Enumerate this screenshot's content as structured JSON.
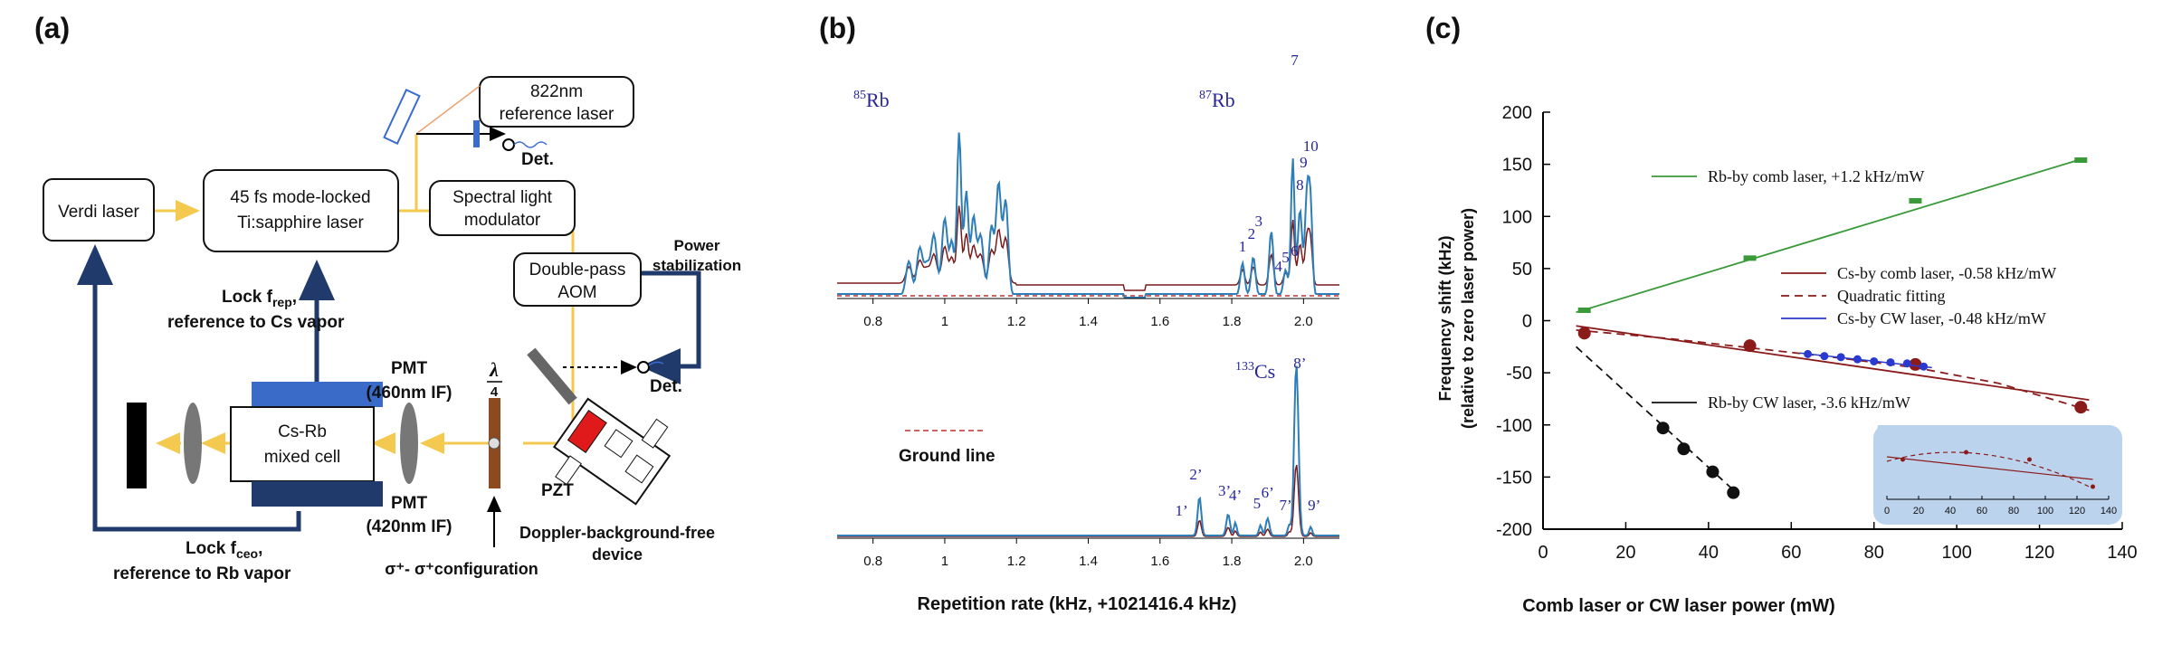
{
  "panel_a": {
    "label": "(a)",
    "verdi": "Verdi laser",
    "ti_line1": "45 fs mode-locked",
    "ti_line2": "Ti:sapphire laser",
    "ref_line1": "822nm",
    "ref_line2": "reference laser",
    "det_top": "Det.",
    "slm_line1": "Spectral light",
    "slm_line2": "modulator",
    "aom_line1": "Double-pass",
    "aom_line2": "AOM",
    "power_line1": "Power",
    "power_line2": "stabilization",
    "det_mid": "Det.",
    "lock_rep_line1": "Lock f",
    "lock_rep_sub": "rep",
    "lock_rep_line2": "reference to Cs vapor",
    "pmt460_line1": "PMT",
    "pmt460_line2": "(460nm IF)",
    "cell_line1": "Cs-Rb",
    "cell_line2": "mixed cell",
    "pmt420_line1": "PMT",
    "pmt420_line2": "(420nm IF)",
    "lambda_num": "λ",
    "lambda_den": "4",
    "pzt": "PZT",
    "doppler_line1": "Doppler-background-free",
    "doppler_line2": "device",
    "lock_ceo_line1": "Lock f",
    "lock_ceo_sub": "ceo",
    "lock_ceo_line2": "reference to Rb vapor",
    "sigma_text": "σ⁺- σ⁺configuration"
  },
  "panel_b": {
    "label": "(b)",
    "rb85_sup": "85",
    "rb85_el": "Rb",
    "rb87_sup": "87",
    "rb87_el": "Rb",
    "cs_sup": "133",
    "cs_el": "Cs",
    "ground_line": "Ground line",
    "xlabel": "Repetition rate (kHz, +1021416.4 kHz)",
    "x_ticks": [
      "0.8",
      "1",
      "1.2",
      "1.4",
      "1.6",
      "1.8",
      "2.0"
    ],
    "top_peak_labels": [
      "1",
      "2",
      "3",
      "4",
      "5",
      "6",
      "7",
      "8",
      "9",
      "10"
    ],
    "bottom_peak_labels": [
      "1’",
      "2’",
      "3’",
      "4’",
      "5",
      "6’",
      "7’",
      "8’",
      "9’"
    ]
  },
  "panel_c": {
    "label": "(c)",
    "chart_data": {
      "type": "scatter",
      "title": "",
      "xlabel": "Comb laser or CW laser power (mW)",
      "ylabel_line1": "Frequency shift (kHz)",
      "ylabel_line2": "(relative to zero laser power)",
      "xlim": [
        0,
        140
      ],
      "ylim": [
        -200,
        200
      ],
      "x_ticks": [
        "0",
        "20",
        "40",
        "60",
        "80",
        "100",
        "120",
        "140"
      ],
      "y_ticks": [
        "200",
        "150",
        "100",
        "50",
        "0",
        "-50",
        "-100",
        "-150",
        "-200"
      ],
      "series": [
        {
          "name": "Rb-by comb laser, +1.2 kHz/mW",
          "color": "#3a9a3a",
          "x": [
            10,
            30,
            50,
            70,
            90,
            110,
            130
          ],
          "y": [
            10,
            35,
            60,
            87,
            115,
            134,
            154
          ],
          "points_x": [
            10,
            50,
            90,
            130
          ],
          "points_y": [
            10,
            60,
            115,
            154
          ]
        },
        {
          "name": "Cs-by comb laser, -0.58 kHz/mW",
          "color": "#8b1a1a",
          "points_x": [
            10,
            50,
            90,
            130
          ],
          "points_y": [
            -12,
            -24,
            -42,
            -83
          ],
          "fit_x": [
            8,
            132
          ],
          "fit_y": [
            -5,
            -76
          ]
        },
        {
          "name": "Quadratic fitting",
          "color": "#8b1a1a",
          "x": [
            8,
            30,
            50,
            70,
            90,
            110,
            132
          ],
          "y": [
            -9,
            -17,
            -26,
            -35,
            -45,
            -60,
            -86
          ]
        },
        {
          "name": "Cs-by CW laser, -0.48 kHz/mW",
          "color": "#2a3ad0",
          "points_x": [
            64,
            68,
            72,
            76,
            80,
            84,
            88,
            92
          ],
          "points_y": [
            -32,
            -34,
            -35,
            -37,
            -39,
            -40,
            -41,
            -44
          ]
        },
        {
          "name": "Rb-by CW laser, -3.6 kHz/mW",
          "color": "#111111",
          "points_x": [
            29,
            34,
            41,
            46
          ],
          "points_y": [
            -103,
            -123,
            -145,
            -165
          ],
          "fit_x": [
            8,
            47
          ],
          "fit_y": [
            -25,
            -166
          ]
        }
      ],
      "inset_x_ticks": [
        "0",
        "20",
        "40",
        "60",
        "80",
        "100",
        "120",
        "140"
      ]
    }
  }
}
